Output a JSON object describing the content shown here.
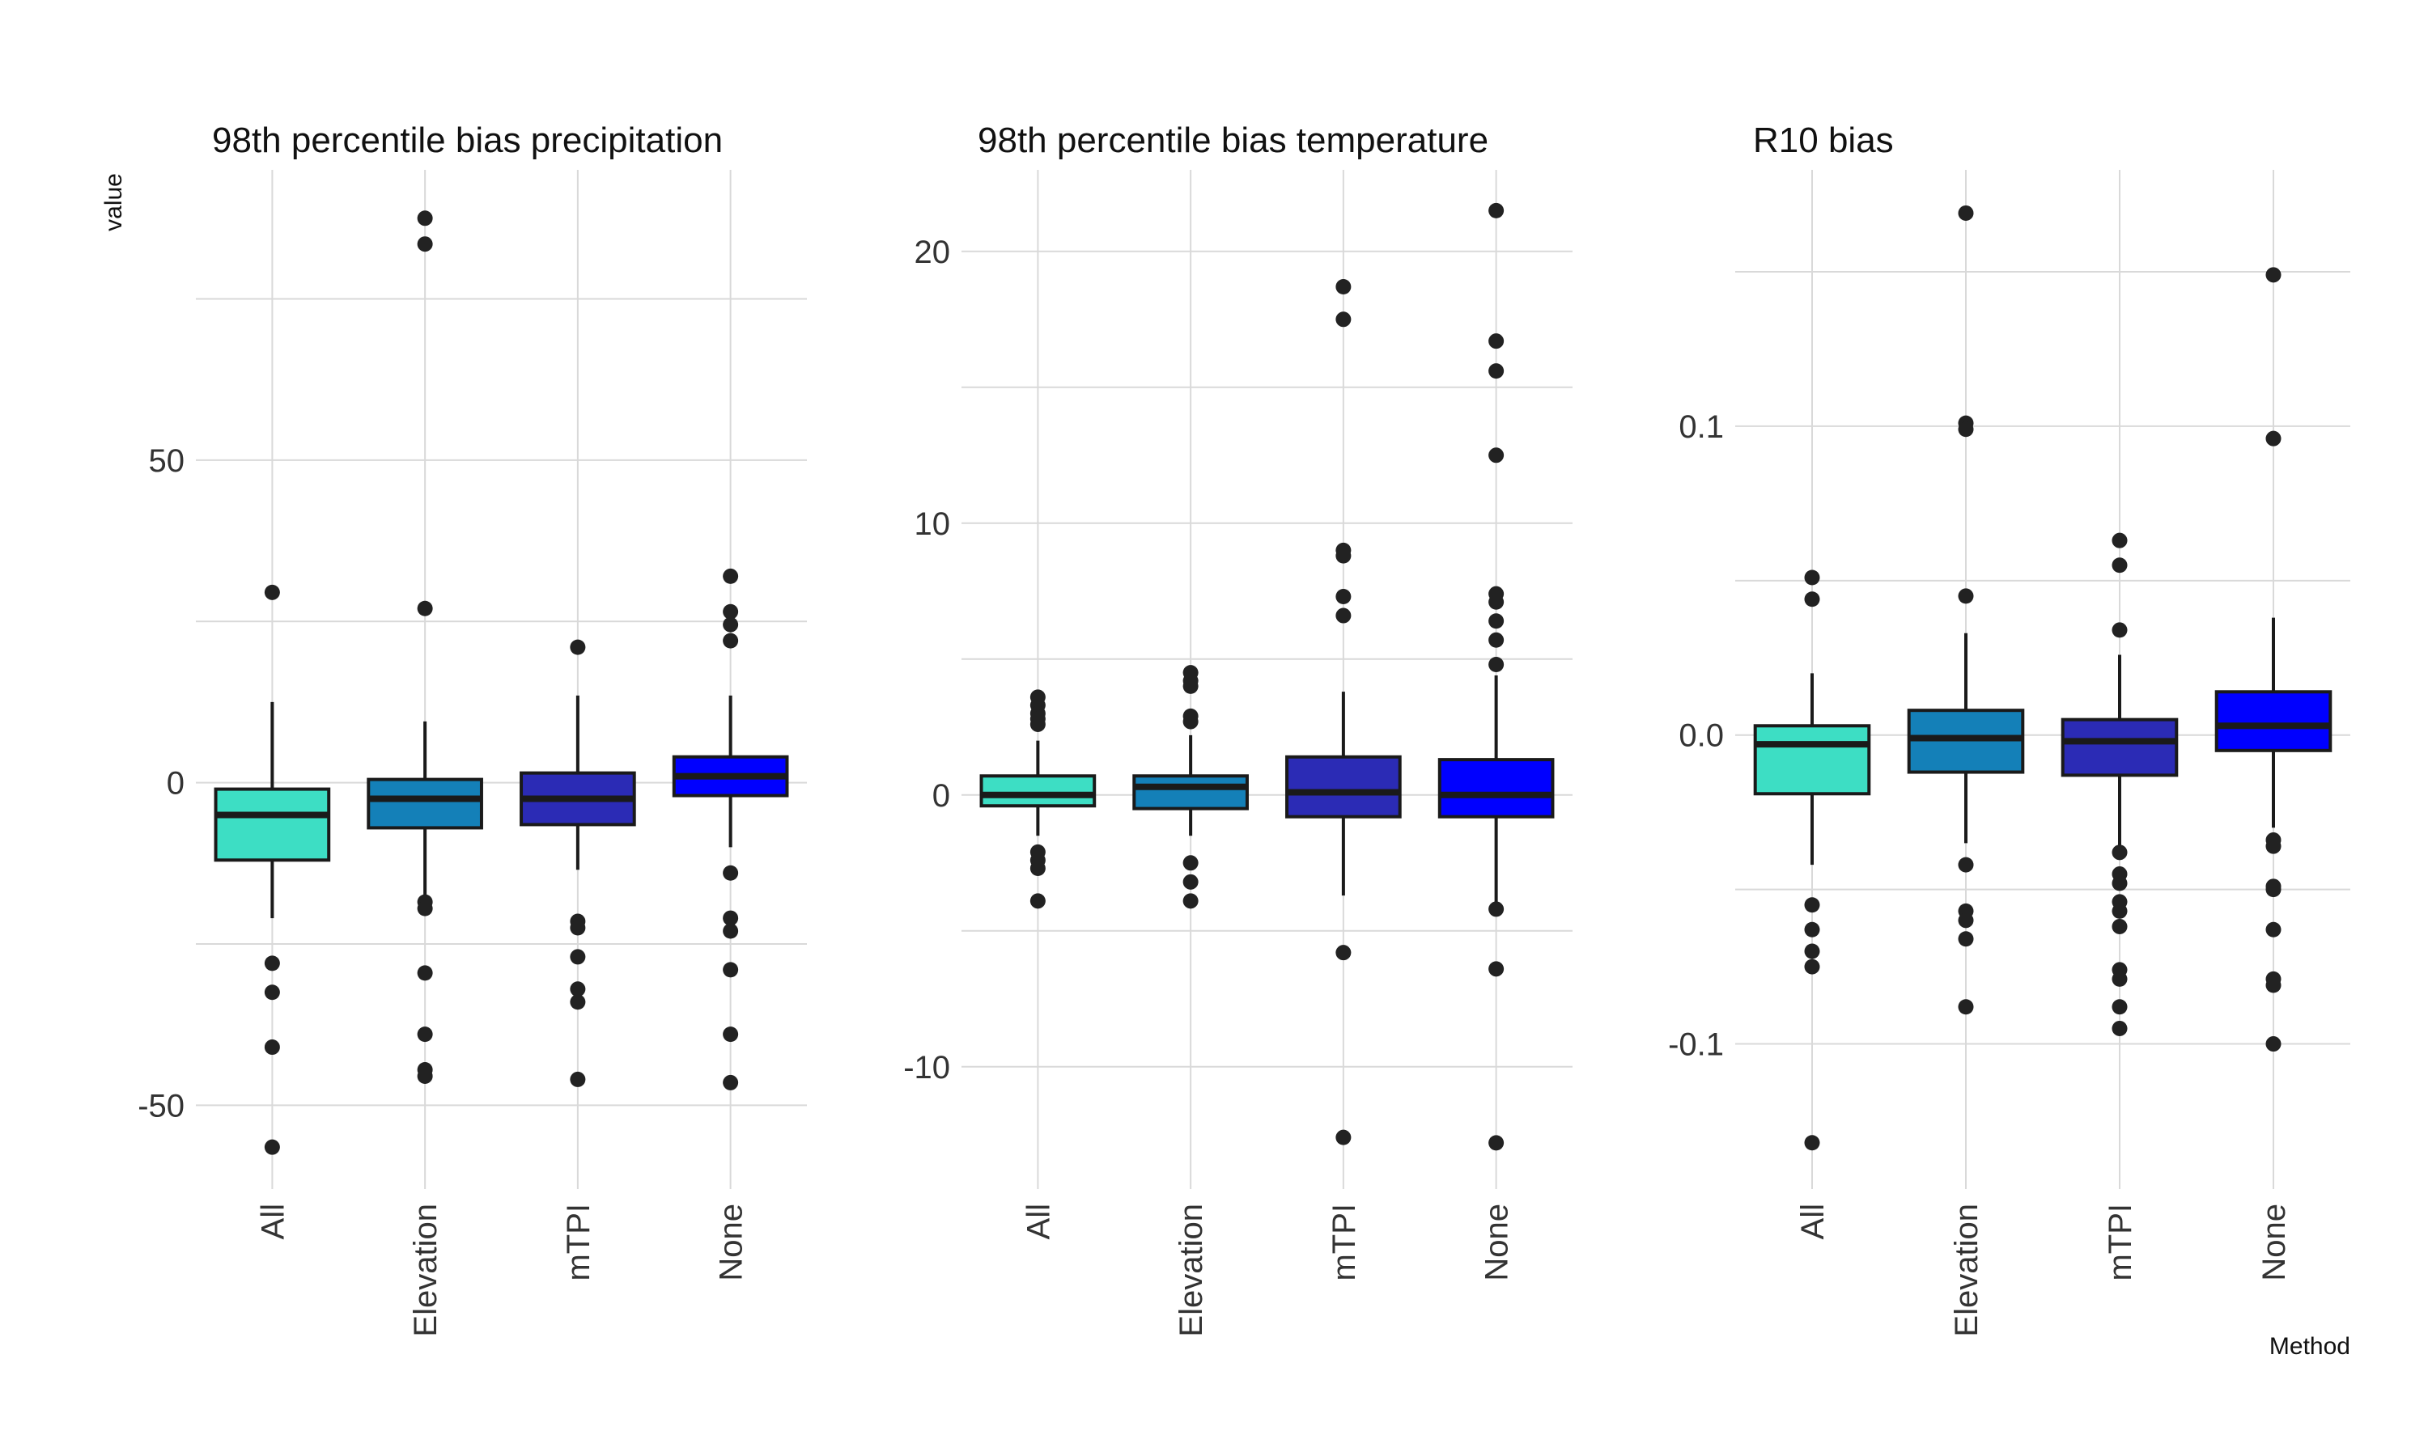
{
  "chart_data": [
    {
      "type": "box",
      "title": "98th percentile bias precipitation",
      "ylabel": "value",
      "xlabel": "",
      "categories": [
        "All",
        "Elevation",
        "mTPI",
        "None"
      ],
      "colors": [
        "#3ddec4",
        "#1480b8",
        "#2b2bb5",
        "#0000ff"
      ],
      "yticks": [
        -50,
        0,
        50
      ],
      "ytick_labels": [
        "-50",
        "0",
        "50"
      ],
      "ylim": [
        -63,
        95
      ],
      "boxes": [
        {
          "whislo": -21,
          "q1": -12,
          "med": -5,
          "q3": -1,
          "whishi": 12.5,
          "fliers": [
            29.5,
            -28,
            -32.5,
            -41,
            -56.5
          ]
        },
        {
          "whislo": -19,
          "q1": -7,
          "med": -2.5,
          "q3": 0.5,
          "whishi": 9.5,
          "fliers": [
            87.5,
            83.5,
            27,
            -18.5,
            -19.5,
            -29.5,
            -39,
            -44.5,
            -45.5
          ]
        },
        {
          "whislo": -13.5,
          "q1": -6.5,
          "med": -2.5,
          "q3": 1.5,
          "whishi": 13.5,
          "fliers": [
            21,
            -21.5,
            -22.5,
            -27,
            -32,
            -34,
            -46
          ]
        },
        {
          "whislo": -10,
          "q1": -2,
          "med": 1,
          "q3": 4,
          "whishi": 13.5,
          "fliers": [
            32,
            26.5,
            24.5,
            22,
            -14,
            -21,
            -23,
            -29,
            -39,
            -46.5
          ]
        }
      ]
    },
    {
      "type": "box",
      "title": "98th percentile bias temperature",
      "xlabel": "",
      "categories": [
        "All",
        "Elevation",
        "mTPI",
        "None"
      ],
      "colors": [
        "#3ddec4",
        "#1480b8",
        "#2b2bb5",
        "#0000ff"
      ],
      "yticks": [
        -10,
        0,
        10,
        20
      ],
      "ytick_labels": [
        "-10",
        "0",
        "10",
        "20"
      ],
      "ylim": [
        -14.5,
        23
      ],
      "boxes": [
        {
          "whislo": -1.5,
          "q1": -0.4,
          "med": 0,
          "q3": 0.7,
          "whishi": 2,
          "fliers": [
            3.6,
            3.3,
            3.0,
            2.8,
            2.6,
            -2.1,
            -2.4,
            -2.7,
            -3.9
          ]
        },
        {
          "whislo": -1.5,
          "q1": -0.5,
          "med": 0.3,
          "q3": 0.7,
          "whishi": 2.2,
          "fliers": [
            4.5,
            4.2,
            4.0,
            2.9,
            2.7,
            -2.5,
            -3.2,
            -3.9
          ]
        },
        {
          "whislo": -3.7,
          "q1": -0.8,
          "med": 0.1,
          "q3": 1.4,
          "whishi": 3.8,
          "fliers": [
            18.7,
            17.5,
            9.0,
            8.8,
            7.3,
            6.6,
            -5.8,
            -12.6
          ]
        },
        {
          "whislo": -4.0,
          "q1": -0.8,
          "med": 0,
          "q3": 1.3,
          "whishi": 4.4,
          "fliers": [
            21.5,
            16.7,
            15.6,
            12.5,
            7.4,
            7.1,
            6.4,
            5.7,
            4.8,
            -4.2,
            -6.4,
            -12.8
          ]
        }
      ]
    },
    {
      "type": "box",
      "title": "R10 bias",
      "xlabel": "Method",
      "categories": [
        "All",
        "Elevation",
        "mTPI",
        "None"
      ],
      "colors": [
        "#3ddec4",
        "#1480b8",
        "#2b2bb5",
        "#0000ff"
      ],
      "yticks": [
        -0.1,
        0,
        0.1
      ],
      "ytick_labels": [
        "-0.1",
        "0.0",
        "0.1"
      ],
      "ylim": [
        -0.147,
        0.183
      ],
      "boxes": [
        {
          "whislo": -0.042,
          "q1": -0.019,
          "med": -0.003,
          "q3": 0.003,
          "whishi": 0.02,
          "fliers": [
            0.051,
            0.044,
            -0.055,
            -0.063,
            -0.07,
            -0.075,
            -0.132
          ]
        },
        {
          "whislo": -0.035,
          "q1": -0.012,
          "med": -0.001,
          "q3": 0.008,
          "whishi": 0.033,
          "fliers": [
            0.169,
            0.101,
            0.099,
            0.045,
            -0.042,
            -0.057,
            -0.06,
            -0.066,
            -0.088
          ]
        },
        {
          "whislo": -0.036,
          "q1": -0.013,
          "med": -0.002,
          "q3": 0.005,
          "whishi": 0.026,
          "fliers": [
            0.063,
            0.055,
            0.034,
            -0.038,
            -0.045,
            -0.048,
            -0.054,
            -0.057,
            -0.062,
            -0.076,
            -0.079,
            -0.088,
            -0.095
          ]
        },
        {
          "whislo": -0.03,
          "q1": -0.005,
          "med": 0.003,
          "q3": 0.014,
          "whishi": 0.038,
          "fliers": [
            0.149,
            0.096,
            -0.034,
            -0.036,
            -0.049,
            -0.05,
            -0.063,
            -0.079,
            -0.081,
            -0.1
          ]
        }
      ]
    }
  ]
}
